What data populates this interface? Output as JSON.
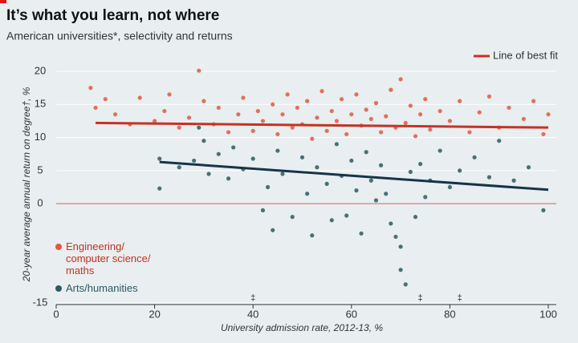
{
  "chart_data": {
    "type": "scatter",
    "title": "It’s what you learn, not where",
    "subtitle": "American universities*, selectivity and returns",
    "x_label": "University admission rate, 2012-13, %",
    "y_label": "20-year average annual return on degree†, %",
    "xlim": [
      0,
      100
    ],
    "xticks": [
      0,
      20,
      40,
      60,
      80,
      100
    ],
    "ylim": [
      -15,
      20
    ],
    "yticks": [
      -15,
      0,
      5,
      10,
      15,
      20
    ],
    "series": [
      {
        "name": "Engineering/ computer science/ maths",
        "color": "#e2583e",
        "x": [
          7,
          8,
          10,
          12,
          15,
          17,
          20,
          22,
          23,
          25,
          27,
          29,
          30,
          32,
          33,
          35,
          37,
          38,
          40,
          41,
          42,
          44,
          45,
          46,
          47,
          48,
          49,
          50,
          51,
          52,
          53,
          54,
          55,
          56,
          57,
          58,
          59,
          60,
          61,
          62,
          63,
          64,
          65,
          66,
          67,
          68,
          69,
          70,
          71,
          72,
          73,
          74,
          75,
          76,
          78,
          80,
          82,
          84,
          86,
          88,
          90,
          92,
          95,
          97,
          99,
          100
        ],
        "values": [
          17.5,
          14.5,
          15.8,
          13.5,
          12,
          16,
          12.5,
          14,
          16.5,
          11.5,
          13,
          20.1,
          15.5,
          12,
          14.5,
          10.8,
          13.5,
          16,
          11,
          14,
          12.5,
          15,
          10.5,
          13.5,
          16.5,
          11.5,
          14.5,
          12,
          15.5,
          9.8,
          13,
          17,
          11,
          14,
          12.5,
          15.8,
          10.5,
          13.5,
          16.5,
          11.8,
          14.2,
          12.8,
          15.2,
          10.8,
          13.2,
          17.2,
          11.5,
          18.8,
          12.2,
          14.8,
          10.2,
          13.5,
          15.8,
          11.2,
          14,
          12.5,
          15.5,
          10.8,
          13.8,
          16.2,
          11.5,
          14.5,
          12.8,
          15.5,
          10.5,
          13.5
        ]
      },
      {
        "name": "Arts/humanities",
        "color": "#2c5a62",
        "x": [
          21,
          21,
          25,
          28,
          29,
          30,
          31,
          33,
          35,
          36,
          38,
          40,
          42,
          43,
          44,
          45,
          46,
          48,
          50,
          51,
          52,
          53,
          55,
          56,
          57,
          58,
          59,
          60,
          61,
          62,
          63,
          64,
          65,
          66,
          67,
          68,
          69,
          70,
          70,
          71,
          72,
          73,
          74,
          75,
          76,
          78,
          80,
          82,
          85,
          88,
          90,
          93,
          96,
          99
        ],
        "values": [
          6.8,
          2.3,
          5.5,
          6.5,
          11.5,
          9.5,
          4.5,
          7.5,
          3.8,
          8.5,
          5.2,
          6.8,
          -1,
          2.5,
          -4,
          8,
          4.5,
          -2,
          7,
          1.5,
          -4.8,
          5.5,
          3,
          -2.5,
          9,
          4.2,
          -1.8,
          6.5,
          2,
          -4.5,
          7.8,
          3.5,
          0.5,
          5.8,
          1.5,
          -3,
          -5,
          -6.5,
          -10,
          -12.2,
          4.8,
          -2,
          6,
          1,
          3.5,
          8,
          2.5,
          5,
          7,
          4,
          9.5,
          3.5,
          5.5,
          -1
        ]
      }
    ],
    "fit_lines": {
      "name": "Line of best fit",
      "lines": [
        {
          "color": "#c8321e",
          "x": [
            8,
            100
          ],
          "values": [
            12.2,
            11.5
          ]
        },
        {
          "color": "#16344a",
          "x": [
            21,
            100
          ],
          "values": [
            6.3,
            2.1
          ]
        }
      ]
    },
    "outlier_markers": {
      "label": "‡",
      "x": [
        40,
        74,
        82
      ]
    }
  }
}
